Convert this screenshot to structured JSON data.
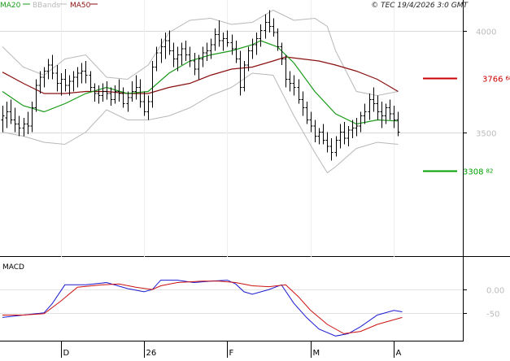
{
  "chart_data": [
    {
      "type": "ohlc",
      "legend": [
        {
          "name": "MA20",
          "color": "#1a9b1a"
        },
        {
          "name": "BBands",
          "color": "#b8b8b8"
        },
        {
          "name": "MA50",
          "color": "#8b1010"
        }
      ],
      "copyright": "© TEC 19/4/2026 3:0 GMT",
      "y_ticks": [
        {
          "value": 4000,
          "label": "4000"
        },
        {
          "value": 3500,
          "label": "3500"
        }
      ],
      "ylim": [
        2950,
        4150
      ],
      "xlim": [
        0,
        100
      ],
      "x_ticks": [
        {
          "x": 14,
          "label": "D"
        },
        {
          "x": 34,
          "label": "26"
        },
        {
          "x": 54,
          "label": "F"
        },
        {
          "x": 74,
          "label": "M"
        },
        {
          "x": 94,
          "label": "A"
        }
      ],
      "levels": [
        {
          "value": 3766.8,
          "label_main": "3766",
          "label_sup": "68",
          "color": "#cc0000"
        },
        {
          "value": 3308.2,
          "label_main": "3308",
          "label_sup": "82",
          "color": "#00a000"
        }
      ],
      "bars": [
        [
          0,
          3560,
          3630,
          3500,
          3580
        ],
        [
          1,
          3570,
          3650,
          3520,
          3600
        ],
        [
          2,
          3600,
          3660,
          3540,
          3560
        ],
        [
          3,
          3560,
          3620,
          3500,
          3540
        ],
        [
          4,
          3540,
          3580,
          3480,
          3520
        ],
        [
          5,
          3520,
          3570,
          3480,
          3540
        ],
        [
          6,
          3540,
          3600,
          3490,
          3530
        ],
        [
          7,
          3530,
          3650,
          3500,
          3620
        ],
        [
          8,
          3620,
          3760,
          3600,
          3730
        ],
        [
          9,
          3730,
          3800,
          3690,
          3770
        ],
        [
          10,
          3770,
          3820,
          3720,
          3800
        ],
        [
          11,
          3800,
          3860,
          3760,
          3830
        ],
        [
          12,
          3830,
          3880,
          3760,
          3790
        ],
        [
          13,
          3790,
          3830,
          3700,
          3740
        ],
        [
          14,
          3740,
          3790,
          3680,
          3760
        ],
        [
          15,
          3760,
          3810,
          3700,
          3730
        ],
        [
          16,
          3730,
          3780,
          3680,
          3750
        ],
        [
          17,
          3750,
          3800,
          3700,
          3770
        ],
        [
          18,
          3770,
          3820,
          3720,
          3790
        ],
        [
          19,
          3790,
          3840,
          3740,
          3800
        ],
        [
          20,
          3800,
          3850,
          3740,
          3780
        ],
        [
          21,
          3780,
          3800,
          3700,
          3720
        ],
        [
          22,
          3720,
          3740,
          3650,
          3690
        ],
        [
          23,
          3690,
          3730,
          3640,
          3680
        ],
        [
          24,
          3680,
          3740,
          3650,
          3700
        ],
        [
          25,
          3700,
          3750,
          3660,
          3690
        ],
        [
          26,
          3690,
          3720,
          3630,
          3660
        ],
        [
          27,
          3660,
          3730,
          3640,
          3700
        ],
        [
          28,
          3700,
          3760,
          3650,
          3690
        ],
        [
          29,
          3690,
          3720,
          3620,
          3640
        ],
        [
          30,
          3640,
          3700,
          3600,
          3670
        ],
        [
          31,
          3670,
          3750,
          3650,
          3700
        ],
        [
          32,
          3700,
          3780,
          3660,
          3720
        ],
        [
          33,
          3720,
          3760,
          3620,
          3650
        ],
        [
          34,
          3650,
          3700,
          3580,
          3600
        ],
        [
          35,
          3600,
          3680,
          3560,
          3650
        ],
        [
          36,
          3650,
          3850,
          3620,
          3820
        ],
        [
          37,
          3820,
          3920,
          3800,
          3890
        ],
        [
          38,
          3890,
          3960,
          3840,
          3920
        ],
        [
          39,
          3920,
          3990,
          3860,
          3950
        ],
        [
          40,
          3950,
          4000,
          3880,
          3900
        ],
        [
          41,
          3900,
          3940,
          3820,
          3860
        ],
        [
          42,
          3860,
          3920,
          3800,
          3880
        ],
        [
          43,
          3880,
          3940,
          3830,
          3910
        ],
        [
          44,
          3910,
          3950,
          3850,
          3880
        ],
        [
          45,
          3880,
          3920,
          3820,
          3850
        ],
        [
          46,
          3850,
          3890,
          3780,
          3810
        ],
        [
          47,
          3810,
          3880,
          3760,
          3860
        ],
        [
          48,
          3860,
          3920,
          3820,
          3890
        ],
        [
          49,
          3890,
          3940,
          3850,
          3900
        ],
        [
          50,
          3900,
          3960,
          3860,
          3930
        ],
        [
          51,
          3930,
          4010,
          3900,
          3980
        ],
        [
          52,
          3980,
          4050,
          3920,
          3950
        ],
        [
          53,
          3950,
          3990,
          3900,
          3960
        ],
        [
          54,
          3960,
          4000,
          3920,
          3940
        ],
        [
          55,
          3940,
          3980,
          3880,
          3910
        ],
        [
          56,
          3910,
          3950,
          3840,
          3860
        ],
        [
          57,
          3860,
          3900,
          3680,
          3720
        ],
        [
          58,
          3720,
          3850,
          3700,
          3830
        ],
        [
          59,
          3830,
          3920,
          3800,
          3900
        ],
        [
          60,
          3900,
          3960,
          3860,
          3930
        ],
        [
          61,
          3930,
          3990,
          3880,
          3960
        ],
        [
          62,
          3960,
          4030,
          3920,
          4000
        ],
        [
          63,
          4000,
          4080,
          3960,
          4040
        ],
        [
          64,
          4040,
          4100,
          3990,
          4020
        ],
        [
          65,
          4020,
          4060,
          3970,
          3990
        ],
        [
          66,
          3990,
          4010,
          3900,
          3920
        ],
        [
          67,
          3920,
          3940,
          3830,
          3860
        ],
        [
          68,
          3860,
          3880,
          3720,
          3760
        ],
        [
          69,
          3760,
          3800,
          3700,
          3740
        ],
        [
          70,
          3740,
          3780,
          3680,
          3720
        ],
        [
          71,
          3720,
          3760,
          3640,
          3660
        ],
        [
          72,
          3660,
          3700,
          3580,
          3620
        ],
        [
          73,
          3620,
          3650,
          3540,
          3560
        ],
        [
          74,
          3560,
          3600,
          3500,
          3530
        ],
        [
          75,
          3530,
          3560,
          3450,
          3480
        ],
        [
          76,
          3480,
          3520,
          3440,
          3500
        ],
        [
          77,
          3500,
          3540,
          3440,
          3460
        ],
        [
          78,
          3460,
          3500,
          3400,
          3430
        ],
        [
          79,
          3430,
          3470,
          3360,
          3400
        ],
        [
          80,
          3400,
          3480,
          3380,
          3460
        ],
        [
          81,
          3460,
          3540,
          3420,
          3500
        ],
        [
          82,
          3500,
          3550,
          3440,
          3470
        ],
        [
          83,
          3470,
          3530,
          3430,
          3510
        ],
        [
          84,
          3510,
          3560,
          3470,
          3520
        ],
        [
          85,
          3520,
          3570,
          3480,
          3530
        ],
        [
          86,
          3530,
          3600,
          3500,
          3580
        ],
        [
          87,
          3580,
          3640,
          3540,
          3600
        ],
        [
          88,
          3600,
          3690,
          3560,
          3660
        ],
        [
          89,
          3660,
          3720,
          3600,
          3640
        ],
        [
          90,
          3640,
          3680,
          3560,
          3600
        ],
        [
          91,
          3600,
          3650,
          3520,
          3580
        ],
        [
          92,
          3580,
          3640,
          3540,
          3620
        ],
        [
          93,
          3620,
          3660,
          3560,
          3590
        ],
        [
          94,
          3590,
          3630,
          3520,
          3560
        ],
        [
          95,
          3560,
          3600,
          3480,
          3500
        ]
      ],
      "ma20": [
        [
          0,
          3700
        ],
        [
          5,
          3630
        ],
        [
          10,
          3600
        ],
        [
          15,
          3640
        ],
        [
          20,
          3690
        ],
        [
          25,
          3720
        ],
        [
          30,
          3690
        ],
        [
          35,
          3700
        ],
        [
          40,
          3790
        ],
        [
          45,
          3850
        ],
        [
          50,
          3880
        ],
        [
          55,
          3900
        ],
        [
          60,
          3930
        ],
        [
          62,
          3950
        ],
        [
          66,
          3920
        ],
        [
          70,
          3840
        ],
        [
          75,
          3700
        ],
        [
          80,
          3590
        ],
        [
          85,
          3540
        ],
        [
          90,
          3560
        ],
        [
          95,
          3555
        ]
      ],
      "ma50": [
        [
          0,
          3795
        ],
        [
          5,
          3740
        ],
        [
          10,
          3690
        ],
        [
          15,
          3690
        ],
        [
          20,
          3700
        ],
        [
          25,
          3700
        ],
        [
          30,
          3690
        ],
        [
          35,
          3690
        ],
        [
          40,
          3720
        ],
        [
          45,
          3740
        ],
        [
          50,
          3780
        ],
        [
          55,
          3810
        ],
        [
          60,
          3820
        ],
        [
          65,
          3850
        ],
        [
          68,
          3870
        ],
        [
          72,
          3860
        ],
        [
          76,
          3850
        ],
        [
          80,
          3830
        ],
        [
          85,
          3800
        ],
        [
          90,
          3760
        ],
        [
          95,
          3700
        ]
      ],
      "bb_upper": [
        [
          0,
          3920
        ],
        [
          5,
          3820
        ],
        [
          10,
          3780
        ],
        [
          15,
          3860
        ],
        [
          20,
          3880
        ],
        [
          25,
          3770
        ],
        [
          30,
          3760
        ],
        [
          35,
          3830
        ],
        [
          40,
          3990
        ],
        [
          45,
          4050
        ],
        [
          50,
          4060
        ],
        [
          55,
          4030
        ],
        [
          60,
          4040
        ],
        [
          65,
          4100
        ],
        [
          70,
          4050
        ],
        [
          75,
          4060
        ],
        [
          78,
          4020
        ],
        [
          80,
          3900
        ],
        [
          85,
          3700
        ],
        [
          90,
          3680
        ],
        [
          95,
          3700
        ]
      ],
      "bb_lower": [
        [
          0,
          3500
        ],
        [
          5,
          3480
        ],
        [
          10,
          3450
        ],
        [
          15,
          3440
        ],
        [
          20,
          3500
        ],
        [
          25,
          3610
        ],
        [
          30,
          3560
        ],
        [
          35,
          3560
        ],
        [
          40,
          3580
        ],
        [
          45,
          3620
        ],
        [
          50,
          3680
        ],
        [
          55,
          3720
        ],
        [
          60,
          3790
        ],
        [
          65,
          3780
        ],
        [
          70,
          3580
        ],
        [
          75,
          3400
        ],
        [
          78,
          3300
        ],
        [
          80,
          3330
        ],
        [
          85,
          3420
        ],
        [
          90,
          3450
        ],
        [
          95,
          3440
        ]
      ]
    },
    {
      "type": "line",
      "title": "MACD",
      "y_ticks": [
        {
          "value": 0,
          "label": "0.00"
        },
        {
          "value": -50,
          "label": "-50"
        }
      ],
      "ylim": [
        -110,
        70
      ],
      "xlim": [
        0,
        100
      ],
      "series": [
        {
          "color": "#1a1ad0",
          "points": [
            [
              0,
              -60
            ],
            [
              5,
              -55
            ],
            [
              10,
              -50
            ],
            [
              12,
              -30
            ],
            [
              15,
              10
            ],
            [
              20,
              10
            ],
            [
              25,
              15
            ],
            [
              30,
              2
            ],
            [
              34,
              -5
            ],
            [
              36,
              0
            ],
            [
              38,
              20
            ],
            [
              42,
              20
            ],
            [
              46,
              15
            ],
            [
              50,
              18
            ],
            [
              54,
              20
            ],
            [
              56,
              12
            ],
            [
              58,
              -5
            ],
            [
              60,
              -10
            ],
            [
              64,
              0
            ],
            [
              67,
              10
            ],
            [
              70,
              -30
            ],
            [
              73,
              -60
            ],
            [
              76,
              -85
            ],
            [
              80,
              -100
            ],
            [
              83,
              -95
            ],
            [
              86,
              -80
            ],
            [
              90,
              -55
            ],
            [
              94,
              -45
            ],
            [
              96,
              -48
            ]
          ]
        },
        {
          "color": "#cc1010",
          "points": [
            [
              0,
              -55
            ],
            [
              5,
              -55
            ],
            [
              10,
              -52
            ],
            [
              14,
              -25
            ],
            [
              18,
              5
            ],
            [
              24,
              10
            ],
            [
              28,
              12
            ],
            [
              32,
              5
            ],
            [
              36,
              0
            ],
            [
              38,
              8
            ],
            [
              42,
              15
            ],
            [
              48,
              18
            ],
            [
              52,
              18
            ],
            [
              56,
              15
            ],
            [
              60,
              8
            ],
            [
              64,
              6
            ],
            [
              68,
              10
            ],
            [
              71,
              -15
            ],
            [
              74,
              -45
            ],
            [
              78,
              -75
            ],
            [
              82,
              -95
            ],
            [
              86,
              -90
            ],
            [
              90,
              -75
            ],
            [
              96,
              -60
            ]
          ]
        }
      ]
    }
  ]
}
